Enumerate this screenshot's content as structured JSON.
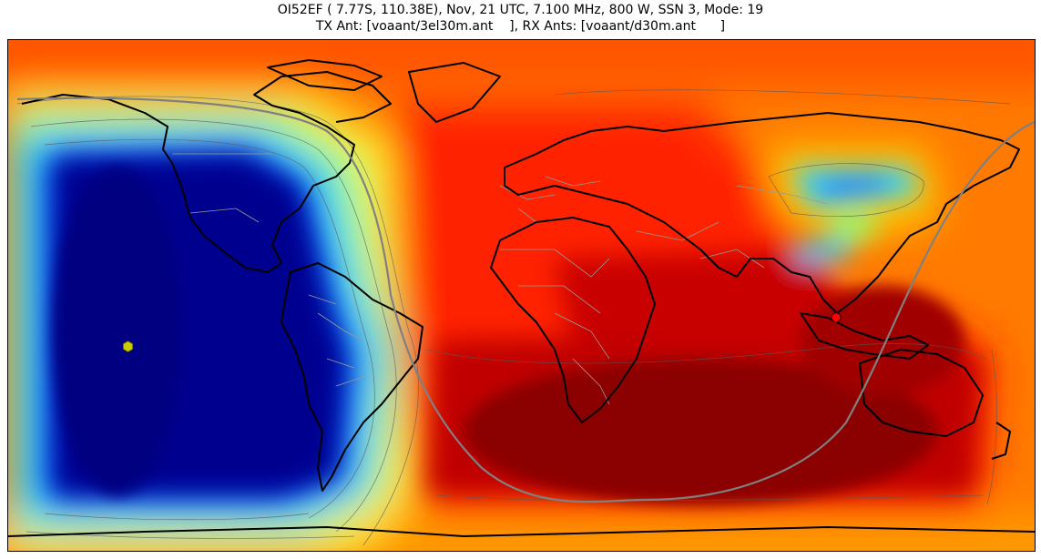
{
  "title": {
    "line1": "OI52EF ( 7.77S, 110.38E), Nov, 21 UTC, 7.100 MHz, 800 W, SSN 3, Mode: 19",
    "line2": "TX Ant: [voaant/3el30m.ant    ], RX Ants: [voaant/d30m.ant      ]"
  },
  "map": {
    "projection": "equirectangular",
    "lon_range": [
      -180,
      180
    ],
    "lat_range": [
      -90,
      90
    ],
    "colormap": "jet",
    "transmitter": {
      "lat": -7.77,
      "lon": 110.38,
      "color": "#ff0000"
    },
    "antipode_marker": {
      "lat": -18,
      "lon": -138,
      "color": "#cccc00",
      "shape": "hexagon"
    },
    "grayline_color": "#808080",
    "coastline_color": "#000000",
    "border_color": "#9a9a9a"
  }
}
